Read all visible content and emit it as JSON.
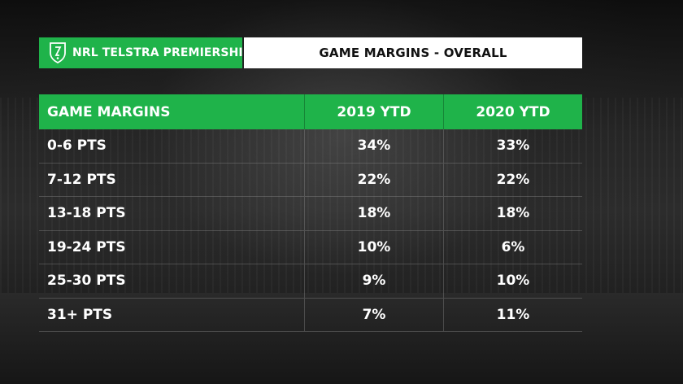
{
  "header": {
    "brand": "NRL TELSTRA PREMIERSHIP",
    "title": "GAME MARGINS - OVERALL",
    "brand_color": "#1fb34a"
  },
  "chart_data": {
    "type": "table",
    "columns": [
      "GAME MARGINS",
      "2019 YTD",
      "2020 YTD"
    ],
    "rows": [
      {
        "label": "0-6 PTS",
        "y2019": "34%",
        "y2020": "33%"
      },
      {
        "label": "7-12 PTS",
        "y2019": "22%",
        "y2020": "22%"
      },
      {
        "label": "13-18 PTS",
        "y2019": "18%",
        "y2020": "18%"
      },
      {
        "label": "19-24 PTS",
        "y2019": "10%",
        "y2020": "6%"
      },
      {
        "label": "25-30 PTS",
        "y2019": "9%",
        "y2020": "10%"
      },
      {
        "label": "31+ PTS",
        "y2019": "7%",
        "y2020": "11%"
      }
    ]
  }
}
